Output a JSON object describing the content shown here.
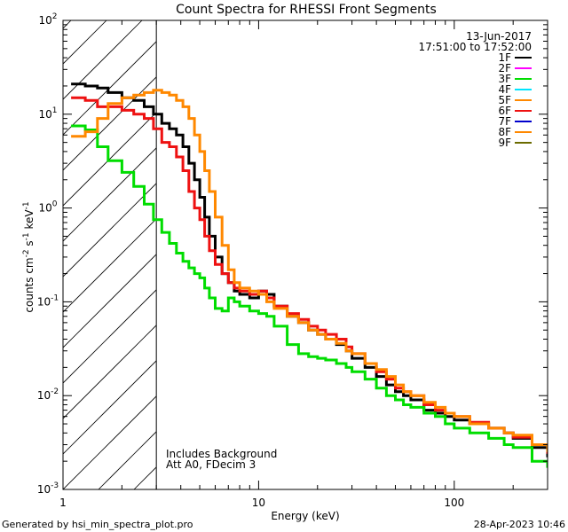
{
  "chart_data": {
    "type": "line",
    "title": "Count Spectra for RHESSI Front Segments",
    "xlabel": "Energy (keV)",
    "ylabel_parts": [
      "counts cm",
      "-2",
      " s",
      "-1",
      " keV",
      "-1"
    ],
    "x_scale": "log",
    "y_scale": "log",
    "xlim": [
      1,
      300
    ],
    "ylim": [
      0.001,
      100
    ],
    "x_ticks": [
      {
        "v": 1,
        "label": "1"
      },
      {
        "v": 10,
        "label": "10"
      },
      {
        "v": 100,
        "label": "100"
      }
    ],
    "y_ticks": [
      {
        "v": 0.001,
        "mant": "10",
        "exp": "-3"
      },
      {
        "v": 0.01,
        "mant": "10",
        "exp": "-2"
      },
      {
        "v": 0.1,
        "mant": "10",
        "exp": "-1"
      },
      {
        "v": 1,
        "mant": "10",
        "exp": "0"
      },
      {
        "v": 10,
        "mant": "10",
        "exp": "1"
      },
      {
        "v": 100,
        "mant": "10",
        "exp": "2"
      }
    ],
    "date": "13-Jun-2017",
    "time_range": "17:51:00 to 17:52:00",
    "shaded_region_below_keV": 3,
    "annotations": [
      "Includes Background",
      "Att A0, FDecim 3"
    ],
    "legend_position": "top-right",
    "legend": [
      {
        "name": "1F",
        "color": "#000000"
      },
      {
        "name": "2F",
        "color": "#ff00ff"
      },
      {
        "name": "3F",
        "color": "#00dd00"
      },
      {
        "name": "4F",
        "color": "#00e5ff"
      },
      {
        "name": "5F",
        "color": "#ff8800"
      },
      {
        "name": "6F",
        "color": "#ee1111"
      },
      {
        "name": "7F",
        "color": "#0000cc"
      },
      {
        "name": "8F",
        "color": "#ff8800"
      },
      {
        "name": "9F",
        "color": "#6b6b00"
      }
    ],
    "series": [
      {
        "name": "1F",
        "color": "#000000",
        "points": [
          [
            1.1,
            21
          ],
          [
            1.3,
            20
          ],
          [
            1.5,
            19
          ],
          [
            1.7,
            17
          ],
          [
            2.0,
            15
          ],
          [
            2.3,
            14
          ],
          [
            2.6,
            12
          ],
          [
            2.9,
            10
          ],
          [
            3.2,
            8
          ],
          [
            3.5,
            7
          ],
          [
            3.8,
            6
          ],
          [
            4.1,
            4.5
          ],
          [
            4.4,
            3
          ],
          [
            4.7,
            2
          ],
          [
            5.0,
            1.3
          ],
          [
            5.3,
            0.8
          ],
          [
            5.6,
            0.5
          ],
          [
            6.0,
            0.3
          ],
          [
            6.5,
            0.2
          ],
          [
            7,
            0.16
          ],
          [
            7.5,
            0.13
          ],
          [
            8,
            0.12
          ],
          [
            9,
            0.11
          ],
          [
            10,
            0.13
          ],
          [
            11,
            0.12
          ],
          [
            12,
            0.09
          ],
          [
            14,
            0.07
          ],
          [
            16,
            0.06
          ],
          [
            18,
            0.05
          ],
          [
            20,
            0.045
          ],
          [
            22,
            0.04
          ],
          [
            25,
            0.035
          ],
          [
            28,
            0.03
          ],
          [
            30,
            0.025
          ],
          [
            35,
            0.02
          ],
          [
            40,
            0.016
          ],
          [
            45,
            0.013
          ],
          [
            50,
            0.011
          ],
          [
            55,
            0.01
          ],
          [
            60,
            0.009
          ],
          [
            70,
            0.007
          ],
          [
            80,
            0.0065
          ],
          [
            90,
            0.006
          ],
          [
            100,
            0.0055
          ],
          [
            120,
            0.005
          ],
          [
            150,
            0.0045
          ],
          [
            180,
            0.004
          ],
          [
            200,
            0.0035
          ],
          [
            250,
            0.0028
          ],
          [
            300,
            0.0022
          ]
        ]
      },
      {
        "name": "3F",
        "color": "#00dd00",
        "points": [
          [
            1.1,
            7.5
          ],
          [
            1.3,
            6.8
          ],
          [
            1.5,
            4.5
          ],
          [
            1.7,
            3.2
          ],
          [
            2.0,
            2.4
          ],
          [
            2.3,
            1.7
          ],
          [
            2.6,
            1.1
          ],
          [
            2.9,
            0.75
          ],
          [
            3.2,
            0.55
          ],
          [
            3.5,
            0.42
          ],
          [
            3.8,
            0.33
          ],
          [
            4.1,
            0.27
          ],
          [
            4.4,
            0.23
          ],
          [
            4.7,
            0.2
          ],
          [
            5.0,
            0.18
          ],
          [
            5.3,
            0.14
          ],
          [
            5.6,
            0.11
          ],
          [
            6.0,
            0.085
          ],
          [
            6.5,
            0.08
          ],
          [
            7,
            0.11
          ],
          [
            7.5,
            0.1
          ],
          [
            8,
            0.09
          ],
          [
            9,
            0.08
          ],
          [
            10,
            0.075
          ],
          [
            11,
            0.07
          ],
          [
            12,
            0.055
          ],
          [
            14,
            0.035
          ],
          [
            16,
            0.028
          ],
          [
            18,
            0.026
          ],
          [
            20,
            0.025
          ],
          [
            22,
            0.024
          ],
          [
            25,
            0.022
          ],
          [
            28,
            0.02
          ],
          [
            30,
            0.018
          ],
          [
            35,
            0.015
          ],
          [
            40,
            0.012
          ],
          [
            45,
            0.01
          ],
          [
            50,
            0.009
          ],
          [
            55,
            0.008
          ],
          [
            60,
            0.0075
          ],
          [
            70,
            0.0065
          ],
          [
            80,
            0.006
          ],
          [
            90,
            0.005
          ],
          [
            100,
            0.0045
          ],
          [
            120,
            0.004
          ],
          [
            150,
            0.0035
          ],
          [
            180,
            0.003
          ],
          [
            200,
            0.0028
          ],
          [
            250,
            0.002
          ],
          [
            300,
            0.0017
          ]
        ]
      },
      {
        "name": "6F",
        "color": "#ee1111",
        "points": [
          [
            1.1,
            15
          ],
          [
            1.3,
            14
          ],
          [
            1.5,
            12
          ],
          [
            1.7,
            12
          ],
          [
            2.0,
            11
          ],
          [
            2.3,
            10
          ],
          [
            2.6,
            9
          ],
          [
            2.9,
            7
          ],
          [
            3.2,
            5
          ],
          [
            3.5,
            4.5
          ],
          [
            3.8,
            3.5
          ],
          [
            4.1,
            2.5
          ],
          [
            4.4,
            1.5
          ],
          [
            4.7,
            1.0
          ],
          [
            5.0,
            0.75
          ],
          [
            5.3,
            0.5
          ],
          [
            5.6,
            0.35
          ],
          [
            6.0,
            0.25
          ],
          [
            6.5,
            0.2
          ],
          [
            7,
            0.16
          ],
          [
            7.5,
            0.14
          ],
          [
            8,
            0.13
          ],
          [
            9,
            0.12
          ],
          [
            10,
            0.13
          ],
          [
            11,
            0.11
          ],
          [
            12,
            0.09
          ],
          [
            14,
            0.075
          ],
          [
            16,
            0.065
          ],
          [
            18,
            0.055
          ],
          [
            20,
            0.05
          ],
          [
            22,
            0.045
          ],
          [
            25,
            0.04
          ],
          [
            28,
            0.033
          ],
          [
            30,
            0.028
          ],
          [
            35,
            0.022
          ],
          [
            40,
            0.018
          ],
          [
            45,
            0.015
          ],
          [
            50,
            0.012
          ],
          [
            55,
            0.011
          ],
          [
            60,
            0.01
          ],
          [
            70,
            0.008
          ],
          [
            80,
            0.007
          ],
          [
            90,
            0.0065
          ],
          [
            100,
            0.006
          ],
          [
            120,
            0.0052
          ],
          [
            150,
            0.0045
          ],
          [
            180,
            0.004
          ],
          [
            200,
            0.0036
          ],
          [
            250,
            0.003
          ],
          [
            300,
            0.0024
          ]
        ]
      },
      {
        "name": "8F",
        "color": "#ff8800",
        "points": [
          [
            1.1,
            5.8
          ],
          [
            1.3,
            6.5
          ],
          [
            1.5,
            9
          ],
          [
            1.7,
            13
          ],
          [
            2.0,
            15
          ],
          [
            2.3,
            16
          ],
          [
            2.6,
            17
          ],
          [
            2.9,
            18
          ],
          [
            3.2,
            17
          ],
          [
            3.5,
            16
          ],
          [
            3.8,
            14
          ],
          [
            4.1,
            12
          ],
          [
            4.4,
            9
          ],
          [
            4.7,
            6
          ],
          [
            5.0,
            4
          ],
          [
            5.3,
            2.5
          ],
          [
            5.6,
            1.5
          ],
          [
            6.0,
            0.8
          ],
          [
            6.5,
            0.4
          ],
          [
            7,
            0.22
          ],
          [
            7.5,
            0.16
          ],
          [
            8,
            0.14
          ],
          [
            9,
            0.13
          ],
          [
            10,
            0.12
          ],
          [
            11,
            0.1
          ],
          [
            12,
            0.085
          ],
          [
            14,
            0.07
          ],
          [
            16,
            0.06
          ],
          [
            18,
            0.05
          ],
          [
            20,
            0.045
          ],
          [
            22,
            0.04
          ],
          [
            25,
            0.036
          ],
          [
            28,
            0.03
          ],
          [
            30,
            0.028
          ],
          [
            35,
            0.022
          ],
          [
            40,
            0.019
          ],
          [
            45,
            0.016
          ],
          [
            50,
            0.013
          ],
          [
            55,
            0.011
          ],
          [
            60,
            0.01
          ],
          [
            70,
            0.0085
          ],
          [
            80,
            0.0075
          ],
          [
            90,
            0.0065
          ],
          [
            100,
            0.006
          ],
          [
            120,
            0.005
          ],
          [
            150,
            0.0045
          ],
          [
            180,
            0.004
          ],
          [
            200,
            0.0038
          ],
          [
            250,
            0.003
          ],
          [
            300,
            0.0025
          ]
        ]
      }
    ]
  },
  "footer": {
    "generator": "Generated by hsi_min_spectra_plot.pro",
    "timestamp": "28-Apr-2023 10:46"
  }
}
